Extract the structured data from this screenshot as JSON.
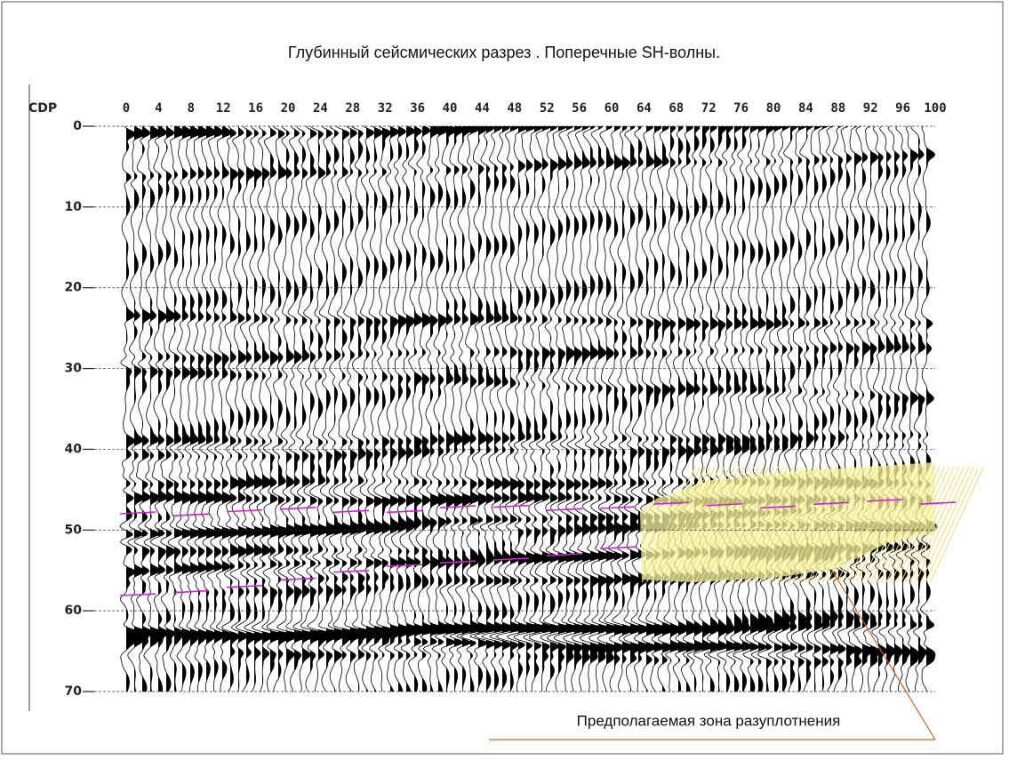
{
  "title": "Глубинный сейсмических разрез . Поперечные SH-волны.",
  "x_axis": {
    "label": "CDP",
    "ticks": [
      0,
      4,
      8,
      12,
      16,
      20,
      24,
      28,
      32,
      36,
      40,
      44,
      48,
      52,
      56,
      60,
      64,
      68,
      72,
      76,
      80,
      84,
      88,
      92,
      96,
      100
    ]
  },
  "y_axis": {
    "ticks": [
      0,
      10,
      20,
      30,
      40,
      50,
      60,
      70
    ]
  },
  "annotation": "Предполагаемая зона разуплотнения"
}
